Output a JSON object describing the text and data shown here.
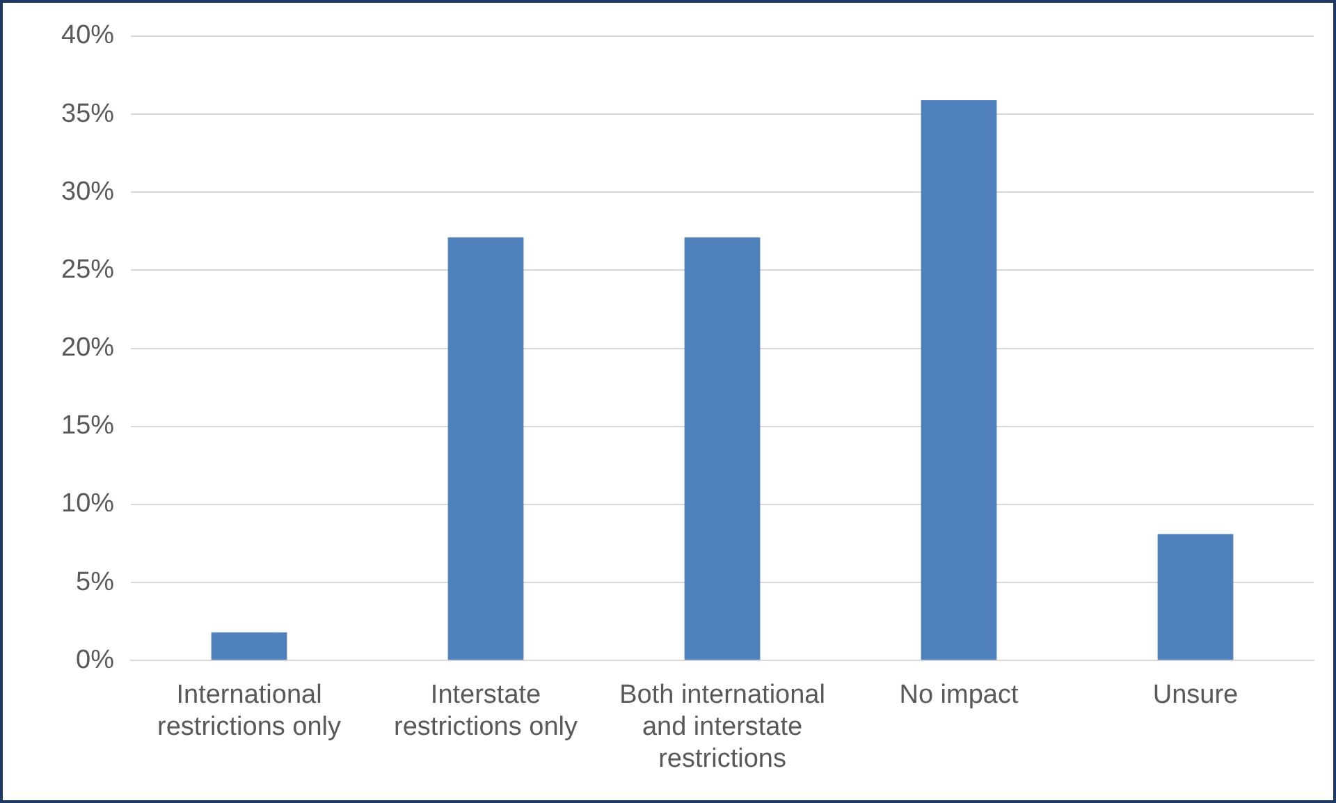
{
  "chart_data": {
    "type": "bar",
    "categories": [
      "International restrictions only",
      "Interstate restrictions only",
      "Both international and interstate restrictions",
      "No impact",
      "Unsure"
    ],
    "values": [
      1.8,
      27.1,
      27.1,
      35.9,
      8.1
    ],
    "color": "#4f81bd",
    "ylim": [
      0,
      40
    ],
    "yticks": [
      {
        "value": 0,
        "label": "0%"
      },
      {
        "value": 5,
        "label": "5%"
      },
      {
        "value": 10,
        "label": "10%"
      },
      {
        "value": 15,
        "label": "15%"
      },
      {
        "value": 20,
        "label": "20%"
      },
      {
        "value": 25,
        "label": "25%"
      },
      {
        "value": 30,
        "label": "30%"
      },
      {
        "value": 35,
        "label": "35%"
      },
      {
        "value": 40,
        "label": "40%"
      }
    ],
    "grid": "y",
    "legend": false
  }
}
